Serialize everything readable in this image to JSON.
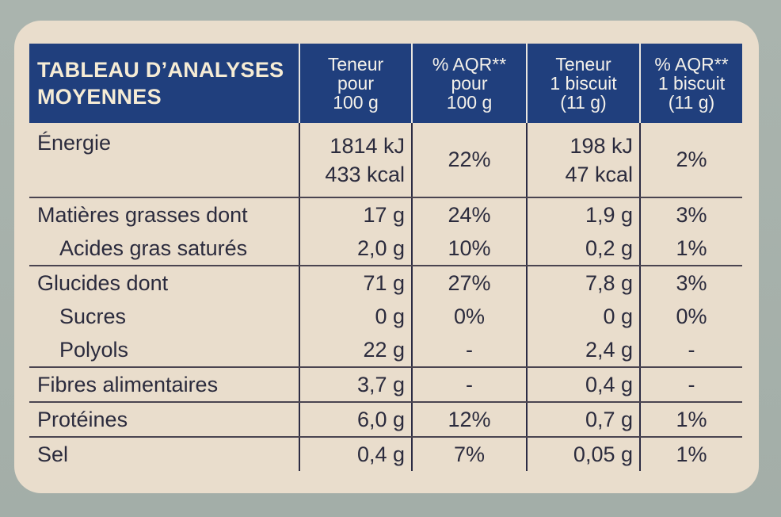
{
  "header": {
    "title_line1": "TABLEAU D’ANALYSES",
    "title_line2": "MOYENNES",
    "col1": [
      "Teneur",
      "pour",
      "100 g"
    ],
    "col2": [
      "% AQR**",
      "pour",
      "100 g"
    ],
    "col3": [
      "Teneur",
      "1 biscuit",
      "(11 g)"
    ],
    "col4": [
      "% AQR**",
      "1 biscuit",
      "(11 g)"
    ]
  },
  "energy": {
    "label": "Énergie",
    "v100_kj": "1814 kJ",
    "v100_kcal": "433 kcal",
    "aqr100": "22%",
    "vb_kj": "198 kJ",
    "vb_kcal": "47 kcal",
    "aqrb": "2%"
  },
  "rows": [
    {
      "label": "Matières grasses dont",
      "v100": "17 g",
      "aqr100": "24%",
      "vb": "1,9 g",
      "aqrb": "3%"
    },
    {
      "label": "Acides gras saturés",
      "v100": "2,0 g",
      "aqr100": "10%",
      "vb": "0,2 g",
      "aqrb": "1%"
    },
    {
      "label": "Glucides dont",
      "v100": "71 g",
      "aqr100": "27%",
      "vb": "7,8 g",
      "aqrb": "3%"
    },
    {
      "label": "Sucres",
      "v100": "0 g",
      "aqr100": "0%",
      "vb": "0 g",
      "aqrb": "0%"
    },
    {
      "label": "Polyols",
      "v100": "22 g",
      "aqr100": "-",
      "vb": "2,4 g",
      "aqrb": "-"
    },
    {
      "label": "Fibres alimentaires",
      "v100": "3,7 g",
      "aqr100": "-",
      "vb": "0,4 g",
      "aqrb": "-"
    },
    {
      "label": "Protéines",
      "v100": "6,0 g",
      "aqr100": "12%",
      "vb": "0,7 g",
      "aqrb": "1%"
    },
    {
      "label": "Sel",
      "v100": "0,4 g",
      "aqr100": "7%",
      "vb": "0,05 g",
      "aqrb": "1%"
    }
  ]
}
